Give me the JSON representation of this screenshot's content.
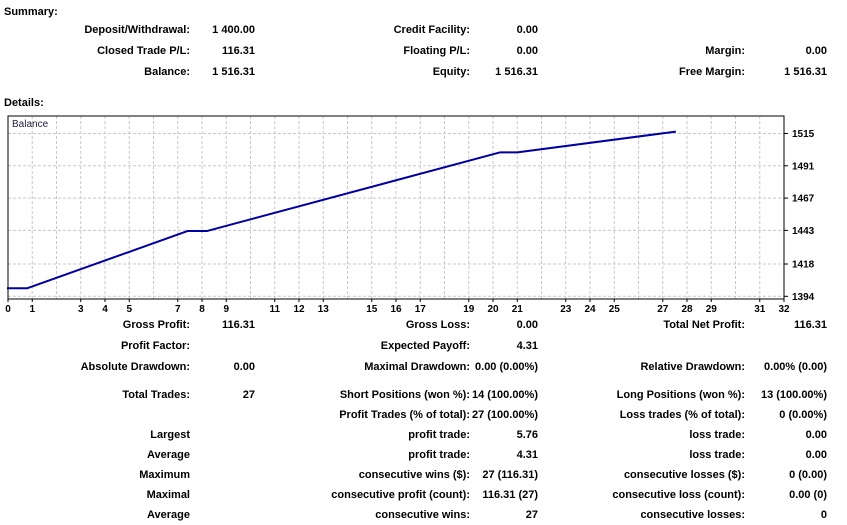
{
  "summary": {
    "heading": "Summary:",
    "rows": [
      [
        "Deposit/Withdrawal:",
        "1 400.00",
        "Credit Facility:",
        "0.00",
        "",
        ""
      ],
      [
        "Closed Trade P/L:",
        "116.31",
        "Floating P/L:",
        "0.00",
        "Margin:",
        "0.00"
      ],
      [
        "Balance:",
        "1 516.31",
        "Equity:",
        "1 516.31",
        "Free Margin:",
        "1 516.31"
      ]
    ]
  },
  "details": {
    "heading": "Details:"
  },
  "chart_data": {
    "type": "line",
    "title": "Balance",
    "legend_position": "top-left-inside",
    "grid": true,
    "grid_color": "#c8c8c8",
    "border_color": "#000000",
    "background": "#ffffff",
    "xlim": [
      0,
      32
    ],
    "ylim": [
      1392,
      1528
    ],
    "x_labeled_ticks": [
      0,
      1,
      3,
      4,
      5,
      7,
      8,
      9,
      11,
      12,
      13,
      15,
      16,
      17,
      19,
      20,
      21,
      23,
      24,
      25,
      27,
      28,
      29,
      31,
      32
    ],
    "y_ticks": [
      1394,
      1418,
      1443,
      1467,
      1491,
      1515
    ],
    "series": [
      {
        "name": "Balance",
        "color": "#0000a0",
        "points": [
          [
            0,
            1400
          ],
          [
            0.8,
            1400
          ],
          [
            7.4,
            1442.5
          ],
          [
            8.2,
            1442.5
          ],
          [
            20.3,
            1501
          ],
          [
            21,
            1501
          ],
          [
            27.5,
            1516.31
          ]
        ]
      }
    ]
  },
  "stats": {
    "top_rows": [
      [
        "Gross Profit:",
        "116.31",
        "Gross Loss:",
        "0.00",
        "Total Net Profit:",
        "116.31"
      ],
      [
        "Profit Factor:",
        "",
        "Expected Payoff:",
        "4.31",
        "",
        ""
      ],
      [
        "Absolute Drawdown:",
        "0.00",
        "Maximal Drawdown:",
        "0.00 (0.00%)",
        "Relative Drawdown:",
        "0.00% (0.00)"
      ]
    ],
    "trade_rows": [
      [
        "Total Trades:",
        "27",
        "Short Positions (won %):",
        "14 (100.00%)",
        "Long Positions (won %):",
        "13 (100.00%)"
      ],
      [
        "",
        "",
        "Profit Trades (% of total):",
        "27 (100.00%)",
        "Loss trades (% of total):",
        "0 (0.00%)"
      ],
      [
        "Largest",
        "",
        "profit trade:",
        "5.76",
        "loss trade:",
        "0.00"
      ],
      [
        "Average",
        "",
        "profit trade:",
        "4.31",
        "loss trade:",
        "0.00"
      ],
      [
        "Maximum",
        "",
        "consecutive wins ($):",
        "27 (116.31)",
        "consecutive losses ($):",
        "0 (0.00)"
      ],
      [
        "Maximal",
        "",
        "consecutive profit (count):",
        "116.31 (27)",
        "consecutive loss (count):",
        "0.00 (0)"
      ],
      [
        "Average",
        "",
        "consecutive wins:",
        "27",
        "consecutive losses:",
        "0"
      ]
    ]
  }
}
